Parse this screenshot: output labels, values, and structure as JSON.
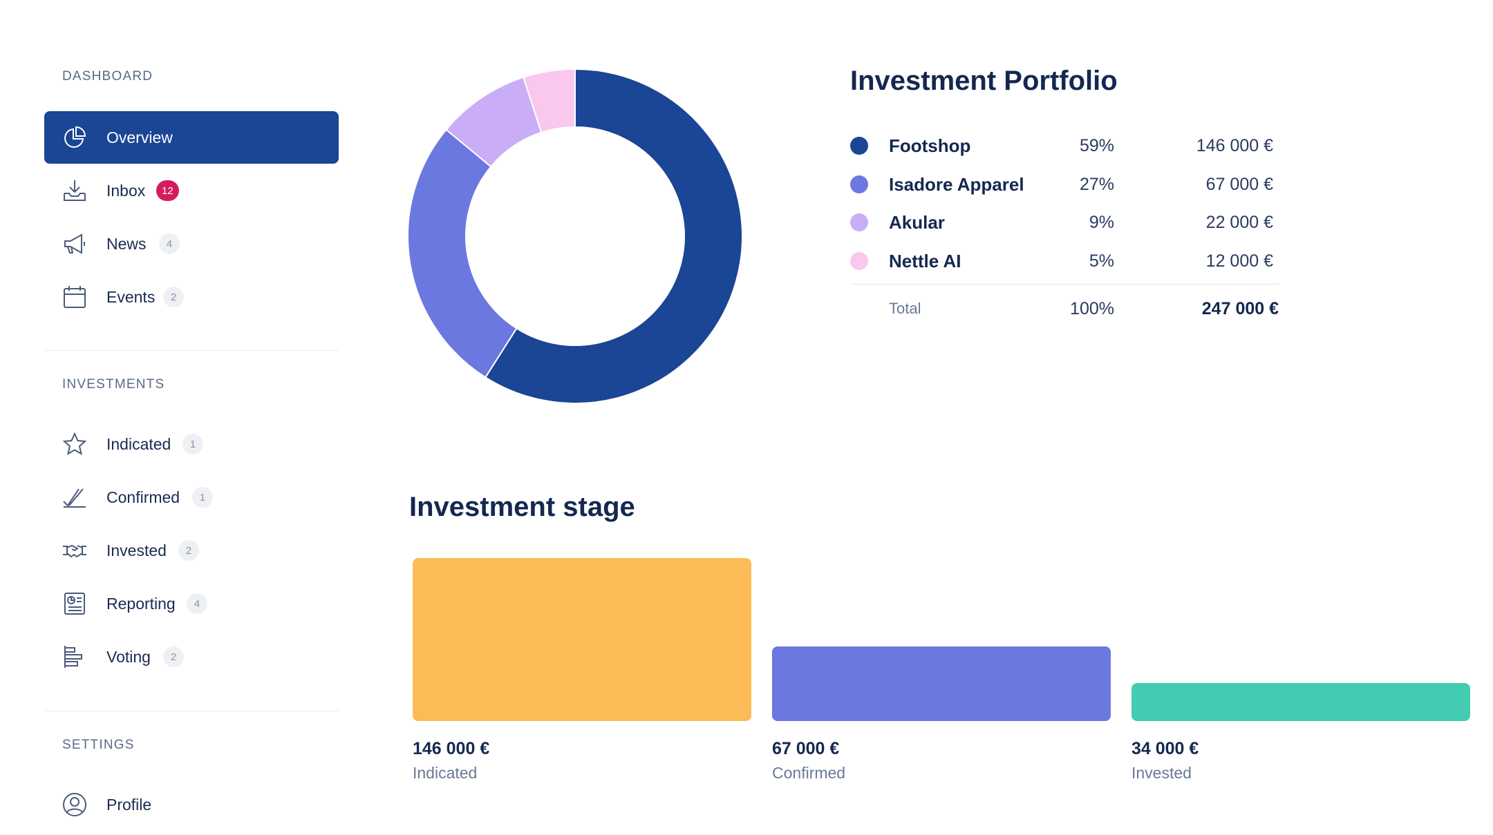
{
  "sidebar": {
    "sections": {
      "dashboard": "DASHBOARD",
      "investments": "INVESTMENTS",
      "settings": "SETTINGS"
    },
    "dashboard_items": [
      {
        "label": "Overview",
        "icon": "pie-chart-icon",
        "active": true
      },
      {
        "label": "Inbox",
        "icon": "inbox-download-icon",
        "badge": "12"
      },
      {
        "label": "News",
        "icon": "megaphone-icon",
        "badge": "4"
      },
      {
        "label": "Events",
        "icon": "calendar-icon",
        "badge": "2"
      }
    ],
    "investment_items": [
      {
        "label": "Indicated",
        "icon": "star-icon",
        "badge": "1"
      },
      {
        "label": "Confirmed",
        "icon": "double-check-icon",
        "badge": "1"
      },
      {
        "label": "Invested",
        "icon": "handshake-icon",
        "badge": "2"
      },
      {
        "label": "Reporting",
        "icon": "report-icon",
        "badge": "4"
      },
      {
        "label": "Voting",
        "icon": "bar-list-icon",
        "badge": "2"
      }
    ],
    "settings_items": [
      {
        "label": "Profile",
        "icon": "user-circle-icon"
      }
    ]
  },
  "portfolio": {
    "title": "Investment Portfolio",
    "rows": [
      {
        "name": "Footshop",
        "pct": "59%",
        "amount": "146 000 €",
        "color": "#1b4595"
      },
      {
        "name": "Isadore Apparel",
        "pct": "27%",
        "amount": "67 000 €",
        "color": "#6b78df"
      },
      {
        "name": "Akular",
        "pct": "9%",
        "amount": "22 000 €",
        "color": "#c9aef7"
      },
      {
        "name": "Nettle AI",
        "pct": "5%",
        "amount": "12 000 €",
        "color": "#f9c8ec"
      }
    ],
    "total": {
      "label": "Total",
      "pct": "100%",
      "amount": "247 000 €"
    }
  },
  "stage": {
    "title": "Investment stage",
    "bars": [
      {
        "amount": "146 000 €",
        "label": "Indicated",
        "value": 146000,
        "color": "#fdbb57"
      },
      {
        "amount": "67 000 €",
        "label": "Confirmed",
        "value": 67000,
        "color": "#6b78df"
      },
      {
        "amount": "34 000 €",
        "label": "Invested",
        "value": 34000,
        "color": "#43ccb1"
      }
    ]
  },
  "chart_data": [
    {
      "type": "pie",
      "categories": [
        "Footshop",
        "Isadore Apparel",
        "Akular",
        "Nettle AI"
      ],
      "values": [
        59,
        27,
        9,
        5
      ],
      "colors": [
        "#1b4595",
        "#6b78df",
        "#c9aef7",
        "#f9c8ec"
      ]
    },
    {
      "type": "bar",
      "title": "Investment stage",
      "categories": [
        "Indicated",
        "Confirmed",
        "Invested"
      ],
      "values": [
        146000,
        67000,
        34000
      ],
      "colors": [
        "#fdbb57",
        "#6b78df",
        "#43ccb1"
      ]
    }
  ]
}
